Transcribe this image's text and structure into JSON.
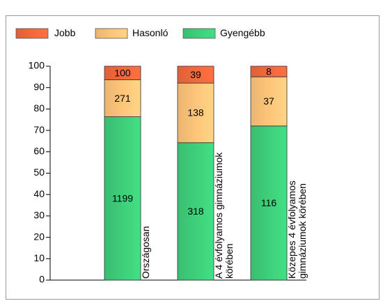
{
  "chart_data": {
    "type": "bar",
    "stack": "percent",
    "categories": [
      "Országosan",
      "A 4 évfolyamos gimnáziumok körében",
      "Közepes 4 évfolyamos gimnáziumok körében"
    ],
    "series": [
      {
        "name": "Gyengébb",
        "color": "#3ecf7a",
        "values": [
          1199,
          318,
          116
        ]
      },
      {
        "name": "Hasonló",
        "color": "#fdc57a",
        "values": [
          271,
          138,
          37
        ]
      },
      {
        "name": "Jobb",
        "color": "#f4683c",
        "values": [
          100,
          39,
          8
        ]
      }
    ],
    "legend_order": [
      "Jobb",
      "Hasonló",
      "Gyengébb"
    ],
    "ylim": [
      0,
      100
    ],
    "yticks": [
      0,
      10,
      20,
      30,
      40,
      50,
      60,
      70,
      80,
      90,
      100
    ],
    "grid": false
  }
}
